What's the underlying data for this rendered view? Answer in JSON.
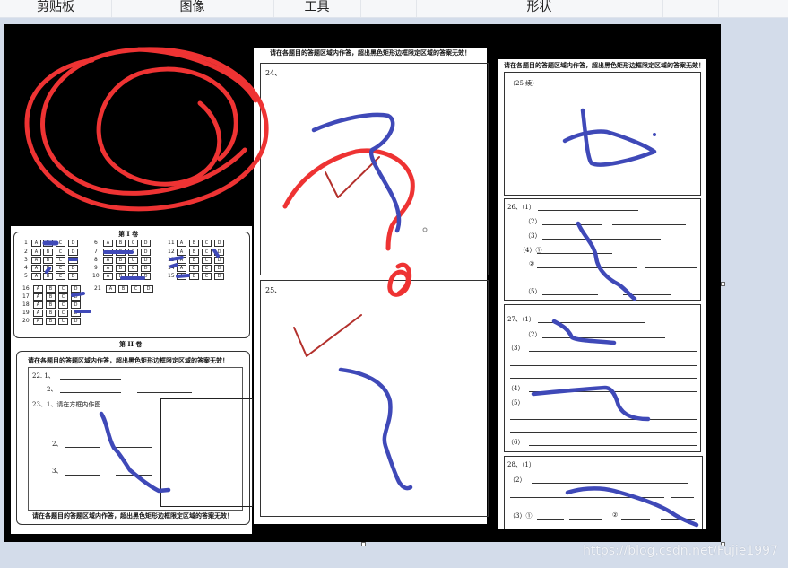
{
  "ribbon": {
    "groups": [
      "剪贴板",
      "图像",
      "工具",
      "形状"
    ]
  },
  "sheet_left": {
    "section1_title": "第 I 卷",
    "section2_title": "第 II 卷",
    "instruction": "请在各题目的答题区域内作答，超出黑色矩形边框限定区域的答案无效！",
    "options": [
      "A",
      "B",
      "C",
      "D"
    ],
    "q22": "22. 1、",
    "q22_2": "2、",
    "q23": "23、1、请在方框内作图",
    "q23_2": "2、",
    "q23_3": "3、"
  },
  "sheet_mid": {
    "header": "请在各题目的答题区域内作答，超出黑色矩形边框限定区域的答案无效！",
    "q24": "24、",
    "q25": "25、"
  },
  "sheet_right": {
    "header": "请在各题目的答题区域内作答，超出黑色矩形边框限定区域的答案无效！",
    "q25cont": "（25 续）",
    "q26": "26、（1）",
    "q26_2": "（2）",
    "q26_3": "（3）",
    "q26_4": "（4）①",
    "q26_4b": "②",
    "q26_5": "（5）",
    "q27": "27、（1）",
    "q27_2": "（2）",
    "q27_3": "（3）",
    "q27_4": "（4）",
    "q27_5": "（5）",
    "q27_6": "（6）",
    "q28": "28、（1）",
    "q28_2": "（2）",
    "q28_3": "（3）①",
    "q28_3b": "②"
  },
  "watermark": "https://blog.csdn.net/Fujie1997",
  "colors": {
    "red_mark": "#ee3333",
    "dark_red_check": "#b3302c",
    "blue_mark": "#3f49b8",
    "canvas_bg": "#000000"
  }
}
